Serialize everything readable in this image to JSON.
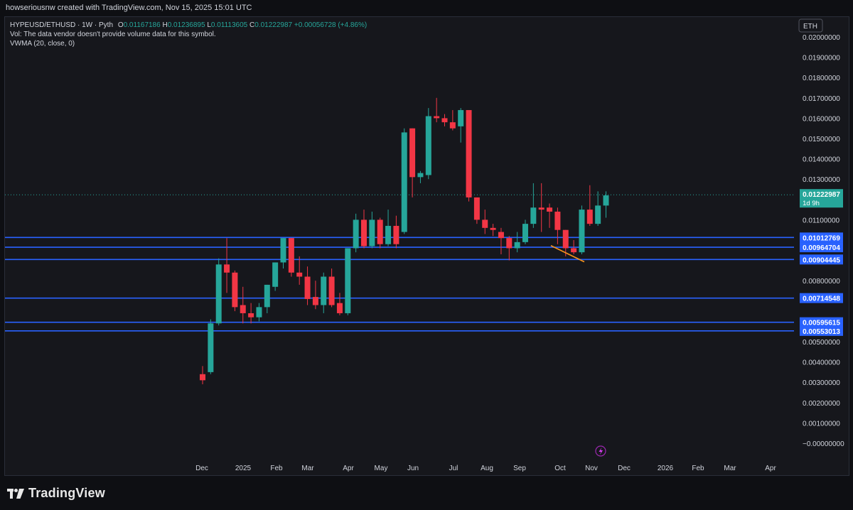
{
  "header": {
    "credit": "howseriousnw created with TradingView.com, Nov 15, 2025 15:01 UTC"
  },
  "legend": {
    "symbol": "HYPEUSD/ETHUSD · 1W · Pyth",
    "open_label": "O",
    "open": "0.01167186",
    "high_label": "H",
    "high": "0.01236895",
    "low_label": "L",
    "low": "0.01113605",
    "close_label": "C",
    "close": "0.01222987",
    "change": "+0.00056728 (+4.86%)",
    "vol_note": "Vol: The data vendor doesn't provide volume data for this symbol.",
    "indicator": "VWMA (20, close, 0)"
  },
  "currency_button": "ETH",
  "branding": {
    "name": "TradingView"
  },
  "colors": {
    "up": "#26a69a",
    "down": "#f23645",
    "hline": "#2962ff",
    "trend": "#f7931a",
    "bg": "#16171c"
  },
  "chart_data": {
    "type": "candlestick",
    "y_axis": {
      "min": 0,
      "max": 0.0205,
      "ticks": [
        "0.02000000",
        "0.01900000",
        "0.01800000",
        "0.01700000",
        "0.01600000",
        "0.01500000",
        "0.01400000",
        "0.01300000",
        "0.01100000",
        "0.00800000",
        "0.00500000",
        "0.00400000",
        "0.00300000",
        "0.00200000",
        "0.00100000",
        "−0.00000000"
      ]
    },
    "x_axis_labels": [
      "Dec",
      "2025",
      "Feb",
      "Mar",
      "Apr",
      "May",
      "Jun",
      "Jul",
      "Aug",
      "Sep",
      "Oct",
      "Nov",
      "Dec",
      "2026",
      "Feb",
      "Mar",
      "Apr"
    ],
    "current_price": {
      "value": 0.01222987,
      "label": "0.01222987",
      "countdown": "1d 9h"
    },
    "horizontal_levels": [
      {
        "value": 0.01012769,
        "label": "0.01012769"
      },
      {
        "value": 0.00964704,
        "label": "0.00964704"
      },
      {
        "value": 0.00904445,
        "label": "0.00904445"
      },
      {
        "value": 0.00714548,
        "label": "0.00714548"
      },
      {
        "value": 0.00595615,
        "label": "0.00595615"
      },
      {
        "value": 0.00553013,
        "label": "0.00553013"
      }
    ],
    "trendline": {
      "from": 0.00973,
      "to": 0.00893
    },
    "candles": [
      {
        "o": 0.0034,
        "h": 0.0038,
        "l": 0.0029,
        "c": 0.0031
      },
      {
        "o": 0.0035,
        "h": 0.0061,
        "l": 0.0034,
        "c": 0.0059
      },
      {
        "o": 0.0059,
        "h": 0.0091,
        "l": 0.0058,
        "c": 0.0088
      },
      {
        "o": 0.0088,
        "h": 0.0101,
        "l": 0.0074,
        "c": 0.0084
      },
      {
        "o": 0.0084,
        "h": 0.0085,
        "l": 0.0065,
        "c": 0.0067
      },
      {
        "o": 0.0068,
        "h": 0.0077,
        "l": 0.0059,
        "c": 0.0064
      },
      {
        "o": 0.0064,
        "h": 0.0069,
        "l": 0.0059,
        "c": 0.0062
      },
      {
        "o": 0.0062,
        "h": 0.0069,
        "l": 0.006,
        "c": 0.0067
      },
      {
        "o": 0.0067,
        "h": 0.0078,
        "l": 0.0064,
        "c": 0.0078
      },
      {
        "o": 0.0077,
        "h": 0.0089,
        "l": 0.0075,
        "c": 0.0089
      },
      {
        "o": 0.0089,
        "h": 0.0101,
        "l": 0.0086,
        "c": 0.0101
      },
      {
        "o": 0.0101,
        "h": 0.0101,
        "l": 0.0082,
        "c": 0.0084
      },
      {
        "o": 0.0084,
        "h": 0.0092,
        "l": 0.0078,
        "c": 0.0082
      },
      {
        "o": 0.0082,
        "h": 0.0087,
        "l": 0.0068,
        "c": 0.0071
      },
      {
        "o": 0.0072,
        "h": 0.008,
        "l": 0.0066,
        "c": 0.0068
      },
      {
        "o": 0.0068,
        "h": 0.0084,
        "l": 0.0064,
        "c": 0.0082
      },
      {
        "o": 0.0082,
        "h": 0.0086,
        "l": 0.0067,
        "c": 0.0068
      },
      {
        "o": 0.0069,
        "h": 0.0074,
        "l": 0.0063,
        "c": 0.0064
      },
      {
        "o": 0.0064,
        "h": 0.0096,
        "l": 0.0063,
        "c": 0.0096
      },
      {
        "o": 0.0096,
        "h": 0.0113,
        "l": 0.0094,
        "c": 0.011
      },
      {
        "o": 0.011,
        "h": 0.0115,
        "l": 0.0096,
        "c": 0.0097
      },
      {
        "o": 0.0097,
        "h": 0.0114,
        "l": 0.0096,
        "c": 0.011
      },
      {
        "o": 0.011,
        "h": 0.0111,
        "l": 0.0096,
        "c": 0.0098
      },
      {
        "o": 0.0098,
        "h": 0.0115,
        "l": 0.0097,
        "c": 0.0107
      },
      {
        "o": 0.0107,
        "h": 0.0112,
        "l": 0.0096,
        "c": 0.0098
      },
      {
        "o": 0.0104,
        "h": 0.0155,
        "l": 0.0103,
        "c": 0.0153
      },
      {
        "o": 0.0155,
        "h": 0.0155,
        "l": 0.0121,
        "c": 0.0131
      },
      {
        "o": 0.0131,
        "h": 0.0134,
        "l": 0.0128,
        "c": 0.0133
      },
      {
        "o": 0.0132,
        "h": 0.0165,
        "l": 0.013,
        "c": 0.0161
      },
      {
        "o": 0.0161,
        "h": 0.017,
        "l": 0.0158,
        "c": 0.016
      },
      {
        "o": 0.016,
        "h": 0.0162,
        "l": 0.0156,
        "c": 0.0158
      },
      {
        "o": 0.0158,
        "h": 0.0164,
        "l": 0.0154,
        "c": 0.0155
      },
      {
        "o": 0.0156,
        "h": 0.0165,
        "l": 0.0148,
        "c": 0.0164
      },
      {
        "o": 0.0164,
        "h": 0.0164,
        "l": 0.0119,
        "c": 0.0121
      },
      {
        "o": 0.0121,
        "h": 0.0121,
        "l": 0.0108,
        "c": 0.011
      },
      {
        "o": 0.011,
        "h": 0.0115,
        "l": 0.0103,
        "c": 0.0106
      },
      {
        "o": 0.0106,
        "h": 0.0108,
        "l": 0.0102,
        "c": 0.0105
      },
      {
        "o": 0.0104,
        "h": 0.0106,
        "l": 0.0093,
        "c": 0.0101
      },
      {
        "o": 0.0101,
        "h": 0.0102,
        "l": 0.009,
        "c": 0.0096
      },
      {
        "o": 0.0096,
        "h": 0.0104,
        "l": 0.0094,
        "c": 0.0099
      },
      {
        "o": 0.0099,
        "h": 0.011,
        "l": 0.0098,
        "c": 0.0108
      },
      {
        "o": 0.0108,
        "h": 0.0128,
        "l": 0.0106,
        "c": 0.0116
      },
      {
        "o": 0.0116,
        "h": 0.0128,
        "l": 0.0104,
        "c": 0.0115
      },
      {
        "o": 0.0116,
        "h": 0.0118,
        "l": 0.0106,
        "c": 0.0114
      },
      {
        "o": 0.0114,
        "h": 0.0116,
        "l": 0.0098,
        "c": 0.0105
      },
      {
        "o": 0.0105,
        "h": 0.0105,
        "l": 0.0092,
        "c": 0.0096
      },
      {
        "o": 0.0096,
        "h": 0.01,
        "l": 0.0093,
        "c": 0.0094
      },
      {
        "o": 0.0094,
        "h": 0.0117,
        "l": 0.0093,
        "c": 0.0115
      },
      {
        "o": 0.0115,
        "h": 0.0127,
        "l": 0.0107,
        "c": 0.0108
      },
      {
        "o": 0.0108,
        "h": 0.0124,
        "l": 0.0107,
        "c": 0.0117
      },
      {
        "o": 0.0117,
        "h": 0.0124,
        "l": 0.0111,
        "c": 0.0122
      }
    ]
  }
}
